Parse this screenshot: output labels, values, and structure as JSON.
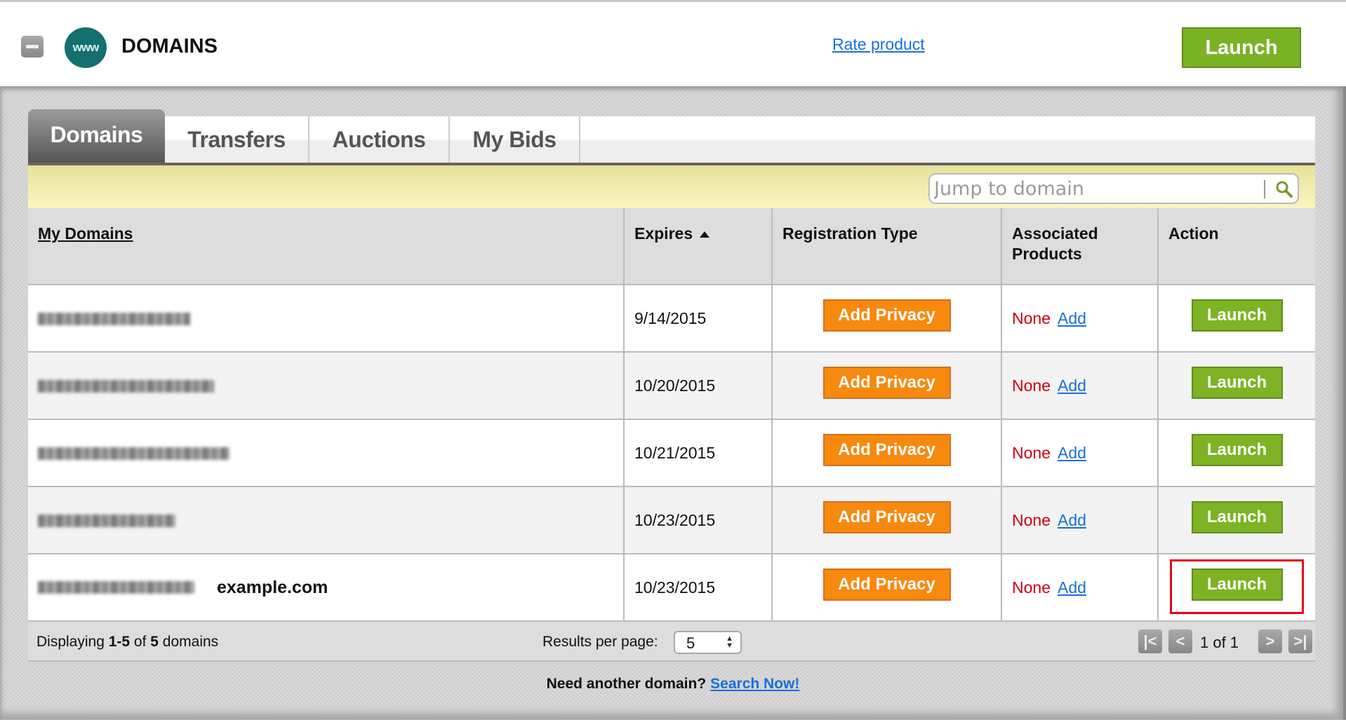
{
  "header": {
    "title": "DOMAINS",
    "logo_text": "www",
    "rate_label": "Rate product",
    "launch_label": "Launch"
  },
  "tabs": [
    {
      "label": "Domains",
      "active": true
    },
    {
      "label": "Transfers"
    },
    {
      "label": "Auctions"
    },
    {
      "label": "My Bids"
    }
  ],
  "search": {
    "placeholder": "Jump to domain"
  },
  "table": {
    "headers": {
      "domain": "My Domains",
      "expires": "Expires",
      "reg_type": "Registration Type",
      "assoc": "Associated Products",
      "action": "Action"
    },
    "rows": [
      {
        "expires": "9/14/2015",
        "privacy": "Add Privacy",
        "assoc": "None",
        "add": "Add",
        "action": "Launch"
      },
      {
        "expires": "10/20/2015",
        "privacy": "Add Privacy",
        "assoc": "None",
        "add": "Add",
        "action": "Launch"
      },
      {
        "expires": "10/21/2015",
        "privacy": "Add Privacy",
        "assoc": "None",
        "add": "Add",
        "action": "Launch"
      },
      {
        "expires": "10/23/2015",
        "privacy": "Add Privacy",
        "assoc": "None",
        "add": "Add",
        "action": "Launch"
      },
      {
        "expires": "10/23/2015",
        "privacy": "Add Privacy",
        "assoc": "None",
        "add": "Add",
        "action": "Launch",
        "annotation": "example.com"
      }
    ]
  },
  "footer": {
    "disp_pre": "Displaying ",
    "disp_range": "1-5",
    "disp_of": " of ",
    "disp_total": "5",
    "disp_post": " domains",
    "rpp_label": "Results per page:",
    "rpp_value": "5",
    "page_text": "1 of 1"
  },
  "bottom": {
    "text": "Need another domain?",
    "link": "Search Now!"
  },
  "colors": {
    "launch": "#7db324",
    "privacy": "#f7890f",
    "none": "#cc0010",
    "link": "#1a6fd8",
    "highlight": "#e8001b"
  }
}
